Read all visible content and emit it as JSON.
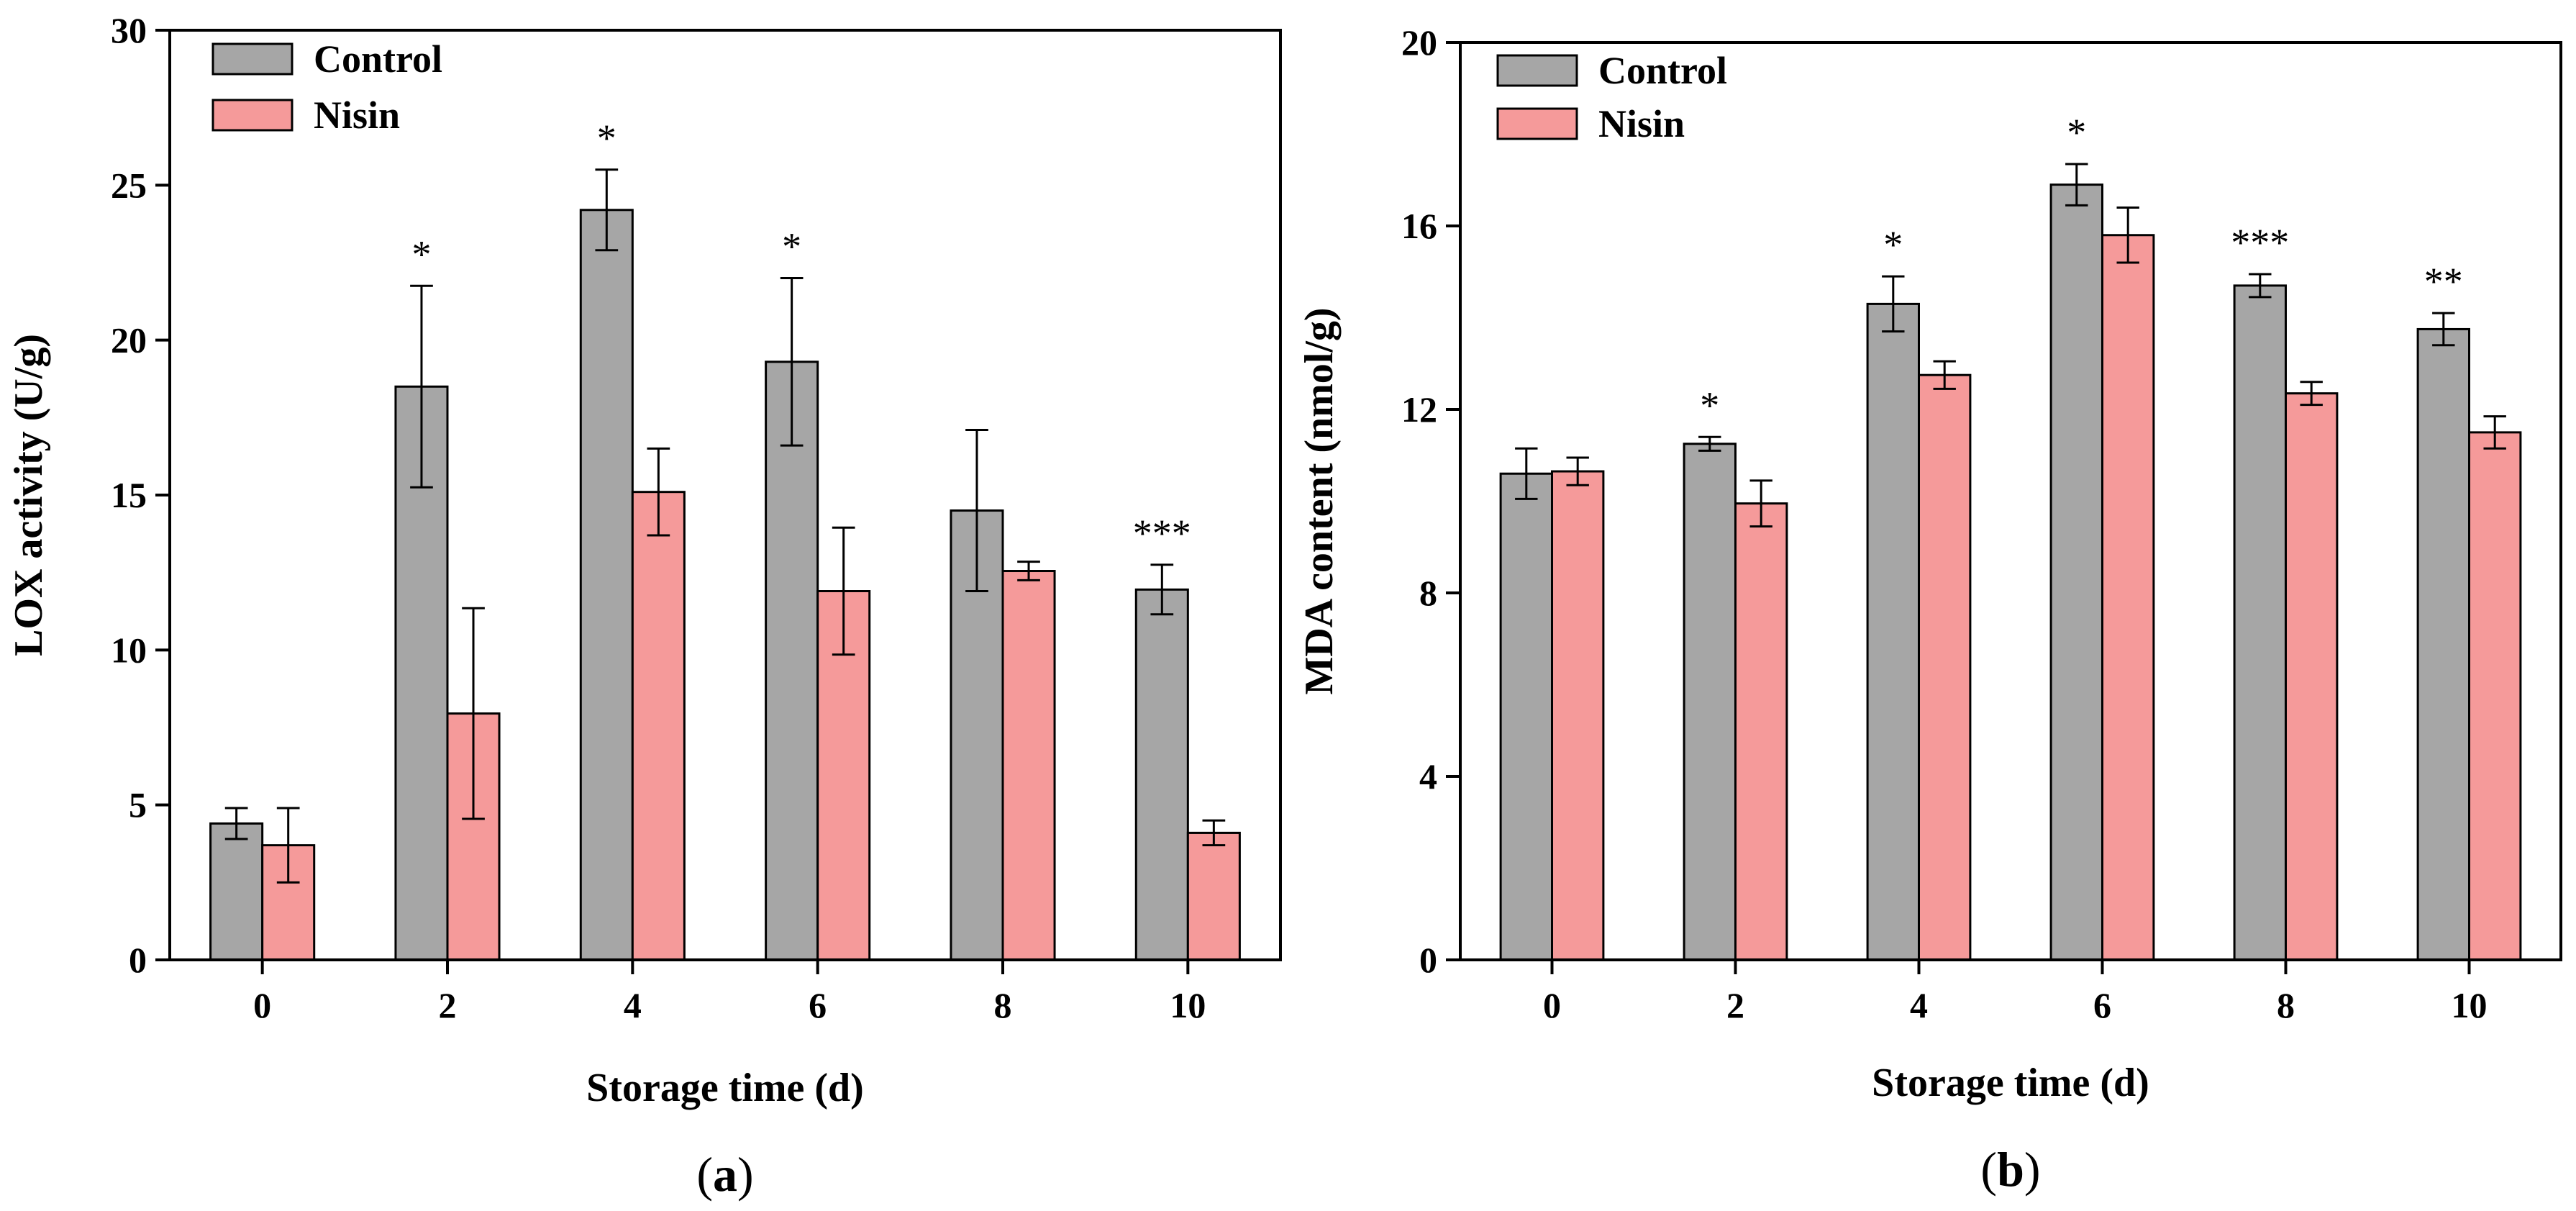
{
  "chart_data": [
    {
      "type": "bar",
      "panel_label": "a",
      "xlabel": "Storage time (d)",
      "ylabel": "LOX activity (U/g)",
      "ylim": [
        0,
        30
      ],
      "yticks": [
        0,
        5,
        10,
        15,
        20,
        25,
        30
      ],
      "legend_position": "top-left",
      "categories": [
        "0",
        "2",
        "4",
        "6",
        "8",
        "10"
      ],
      "series": [
        {
          "name": "Control",
          "color": "#a6a6a6",
          "values": [
            4.4,
            18.5,
            24.2,
            19.3,
            14.5,
            11.95
          ],
          "errors": [
            0.5,
            3.25,
            1.3,
            2.7,
            2.6,
            0.8
          ]
        },
        {
          "name": "Nisin",
          "color": "#f59a9a",
          "values": [
            3.7,
            7.95,
            15.1,
            11.9,
            12.55,
            4.1
          ],
          "errors": [
            1.2,
            3.4,
            1.4,
            2.05,
            0.3,
            0.4
          ]
        }
      ],
      "significance": [
        "",
        "*",
        "*",
        "*",
        "",
        "***"
      ]
    },
    {
      "type": "bar",
      "panel_label": "b",
      "xlabel": "Storage time (d)",
      "ylabel": "MDA content (nmol/g)",
      "ylim": [
        0,
        20
      ],
      "yticks": [
        0,
        4,
        8,
        12,
        16,
        20
      ],
      "legend_position": "top-left",
      "categories": [
        "0",
        "2",
        "4",
        "6",
        "8",
        "10"
      ],
      "series": [
        {
          "name": "Control",
          "color": "#a6a6a6",
          "values": [
            10.6,
            11.25,
            14.3,
            16.9,
            14.7,
            13.75
          ],
          "errors": [
            0.55,
            0.15,
            0.6,
            0.45,
            0.25,
            0.35
          ]
        },
        {
          "name": "Nisin",
          "color": "#f59a9a",
          "values": [
            10.65,
            9.95,
            12.75,
            15.8,
            12.35,
            11.5
          ],
          "errors": [
            0.3,
            0.5,
            0.3,
            0.6,
            0.25,
            0.35
          ]
        }
      ],
      "significance": [
        "",
        "*",
        "*",
        "*",
        "***",
        "**"
      ]
    }
  ]
}
